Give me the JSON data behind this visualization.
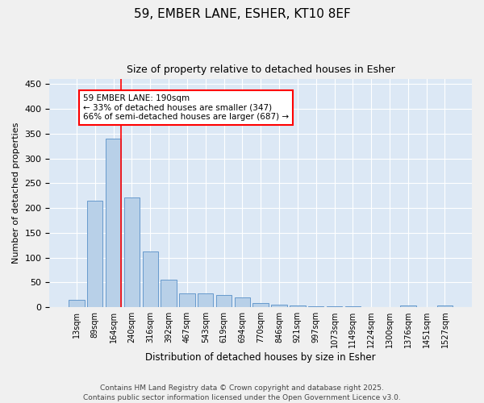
{
  "title_line1": "59, EMBER LANE, ESHER, KT10 8EF",
  "title_line2": "Size of property relative to detached houses in Esher",
  "xlabel": "Distribution of detached houses by size in Esher",
  "ylabel": "Number of detached properties",
  "bar_labels": [
    "13sqm",
    "89sqm",
    "164sqm",
    "240sqm",
    "316sqm",
    "392sqm",
    "467sqm",
    "543sqm",
    "619sqm",
    "694sqm",
    "770sqm",
    "846sqm",
    "921sqm",
    "997sqm",
    "1073sqm",
    "1149sqm",
    "1224sqm",
    "1300sqm",
    "1376sqm",
    "1451sqm",
    "1527sqm"
  ],
  "bar_values": [
    15,
    215,
    340,
    222,
    112,
    55,
    28,
    27,
    25,
    19,
    8,
    5,
    4,
    1,
    1,
    1,
    0,
    0,
    3,
    0,
    3
  ],
  "bar_color": "#b8d0e8",
  "bar_edge_color": "#6699cc",
  "background_color": "#dce8f5",
  "grid_color": "#ffffff",
  "red_line_index": 2,
  "annotation_text": "59 EMBER LANE: 190sqm\n← 33% of detached houses are smaller (347)\n66% of semi-detached houses are larger (687) →",
  "ylim": [
    0,
    460
  ],
  "yticks": [
    0,
    50,
    100,
    150,
    200,
    250,
    300,
    350,
    400,
    450
  ],
  "footer_line1": "Contains HM Land Registry data © Crown copyright and database right 2025.",
  "footer_line2": "Contains public sector information licensed under the Open Government Licence v3.0."
}
